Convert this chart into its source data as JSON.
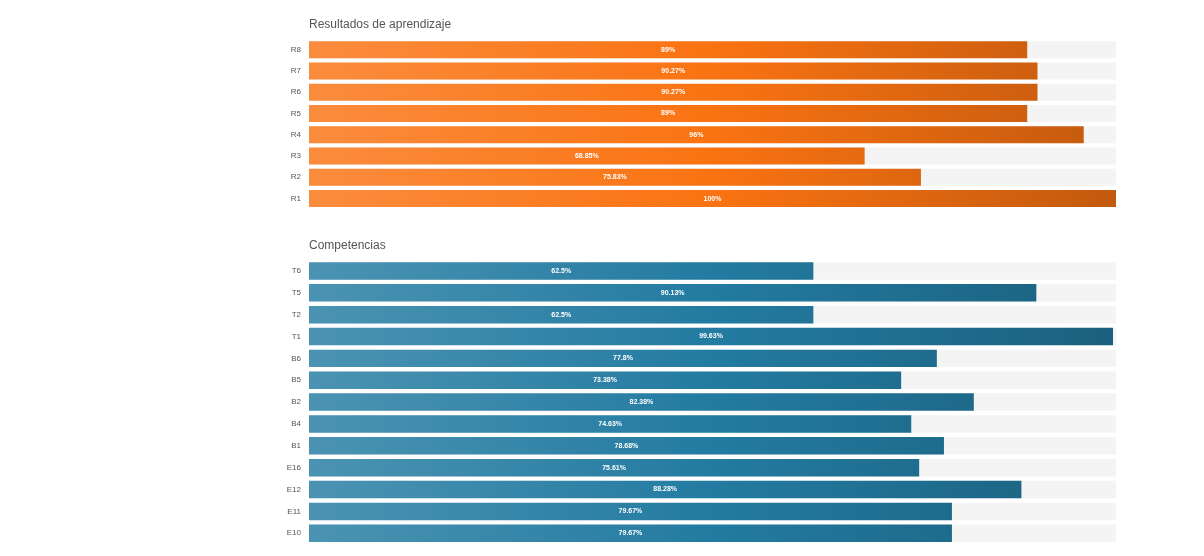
{
  "chart_data": [
    {
      "type": "bar",
      "title": "Resultados de aprendizaje",
      "orientation": "horizontal",
      "categories": [
        "R8",
        "R7",
        "R6",
        "R5",
        "R4",
        "R3",
        "R2",
        "R1"
      ],
      "values": [
        89,
        90.27,
        90.27,
        89,
        96,
        68.85,
        75.83,
        100
      ],
      "value_labels": [
        "89%",
        "90.27%",
        "90.27%",
        "89%",
        "96%",
        "68.85%",
        "75.83%",
        "100%"
      ],
      "color": "#fa7312",
      "xlim": [
        0,
        100
      ],
      "tick_labels": "y"
    },
    {
      "type": "bar",
      "title": "Competencias",
      "orientation": "horizontal",
      "categories": [
        "T6",
        "T5",
        "T2",
        "T1",
        "B6",
        "B5",
        "B2",
        "B4",
        "B1",
        "E16",
        "E12",
        "E11",
        "E10"
      ],
      "values": [
        62.5,
        90.13,
        62.5,
        99.63,
        77.8,
        73.38,
        82.38,
        74.63,
        78.68,
        75.61,
        88.28,
        79.67,
        79.67
      ],
      "value_labels": [
        "62.5%",
        "90.13%",
        "62.5%",
        "99.63%",
        "77.8%",
        "73.38%",
        "82.38%",
        "74.63%",
        "78.68%",
        "75.61%",
        "88.28%",
        "79.67%",
        "79.67%"
      ],
      "color": "#237ba1",
      "xlim": [
        0,
        100
      ],
      "tick_labels": "y"
    }
  ]
}
